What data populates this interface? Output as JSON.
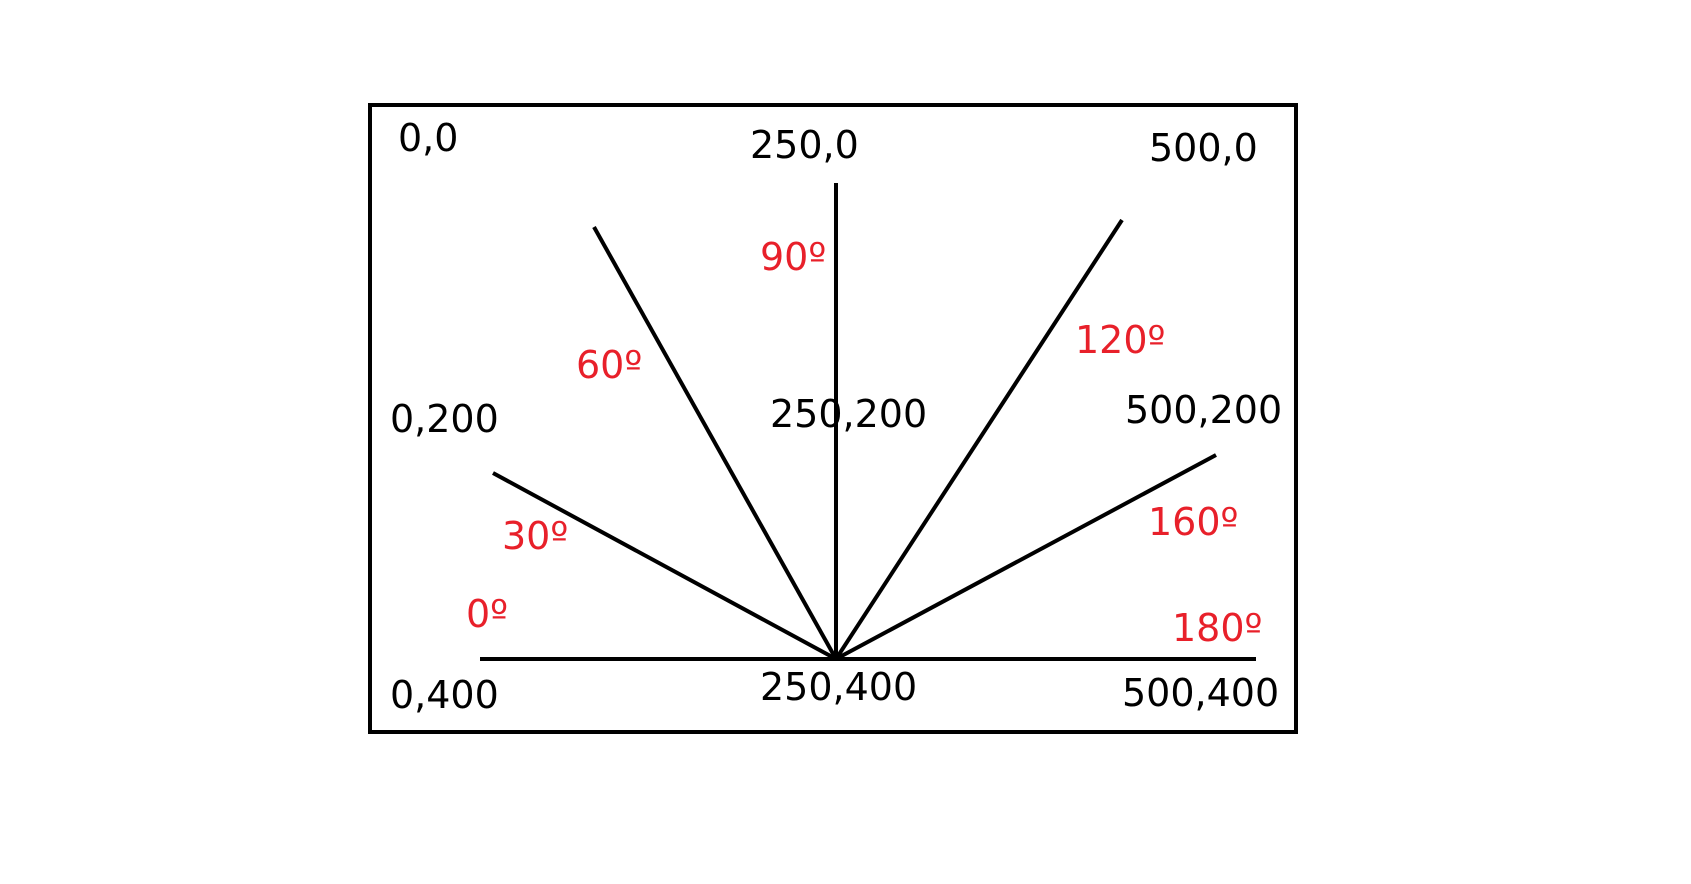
{
  "colors": {
    "line": "#000000",
    "coordinate_text": "#000000",
    "angle_text": "#e8202a",
    "background": "#ffffff"
  },
  "coordinates": {
    "top_left": "0,0",
    "top_center": "250,0",
    "top_right": "500,0",
    "mid_left": "0,200",
    "center": "250,200",
    "mid_right": "500,200",
    "bottom_left": "0,400",
    "bottom_center": "250,400",
    "bottom_right": "500,400"
  },
  "angles": {
    "a0": "0º",
    "a30": "30º",
    "a60": "60º",
    "a90": "90º",
    "a120": "120º",
    "a160": "160º",
    "a180": "180º"
  }
}
